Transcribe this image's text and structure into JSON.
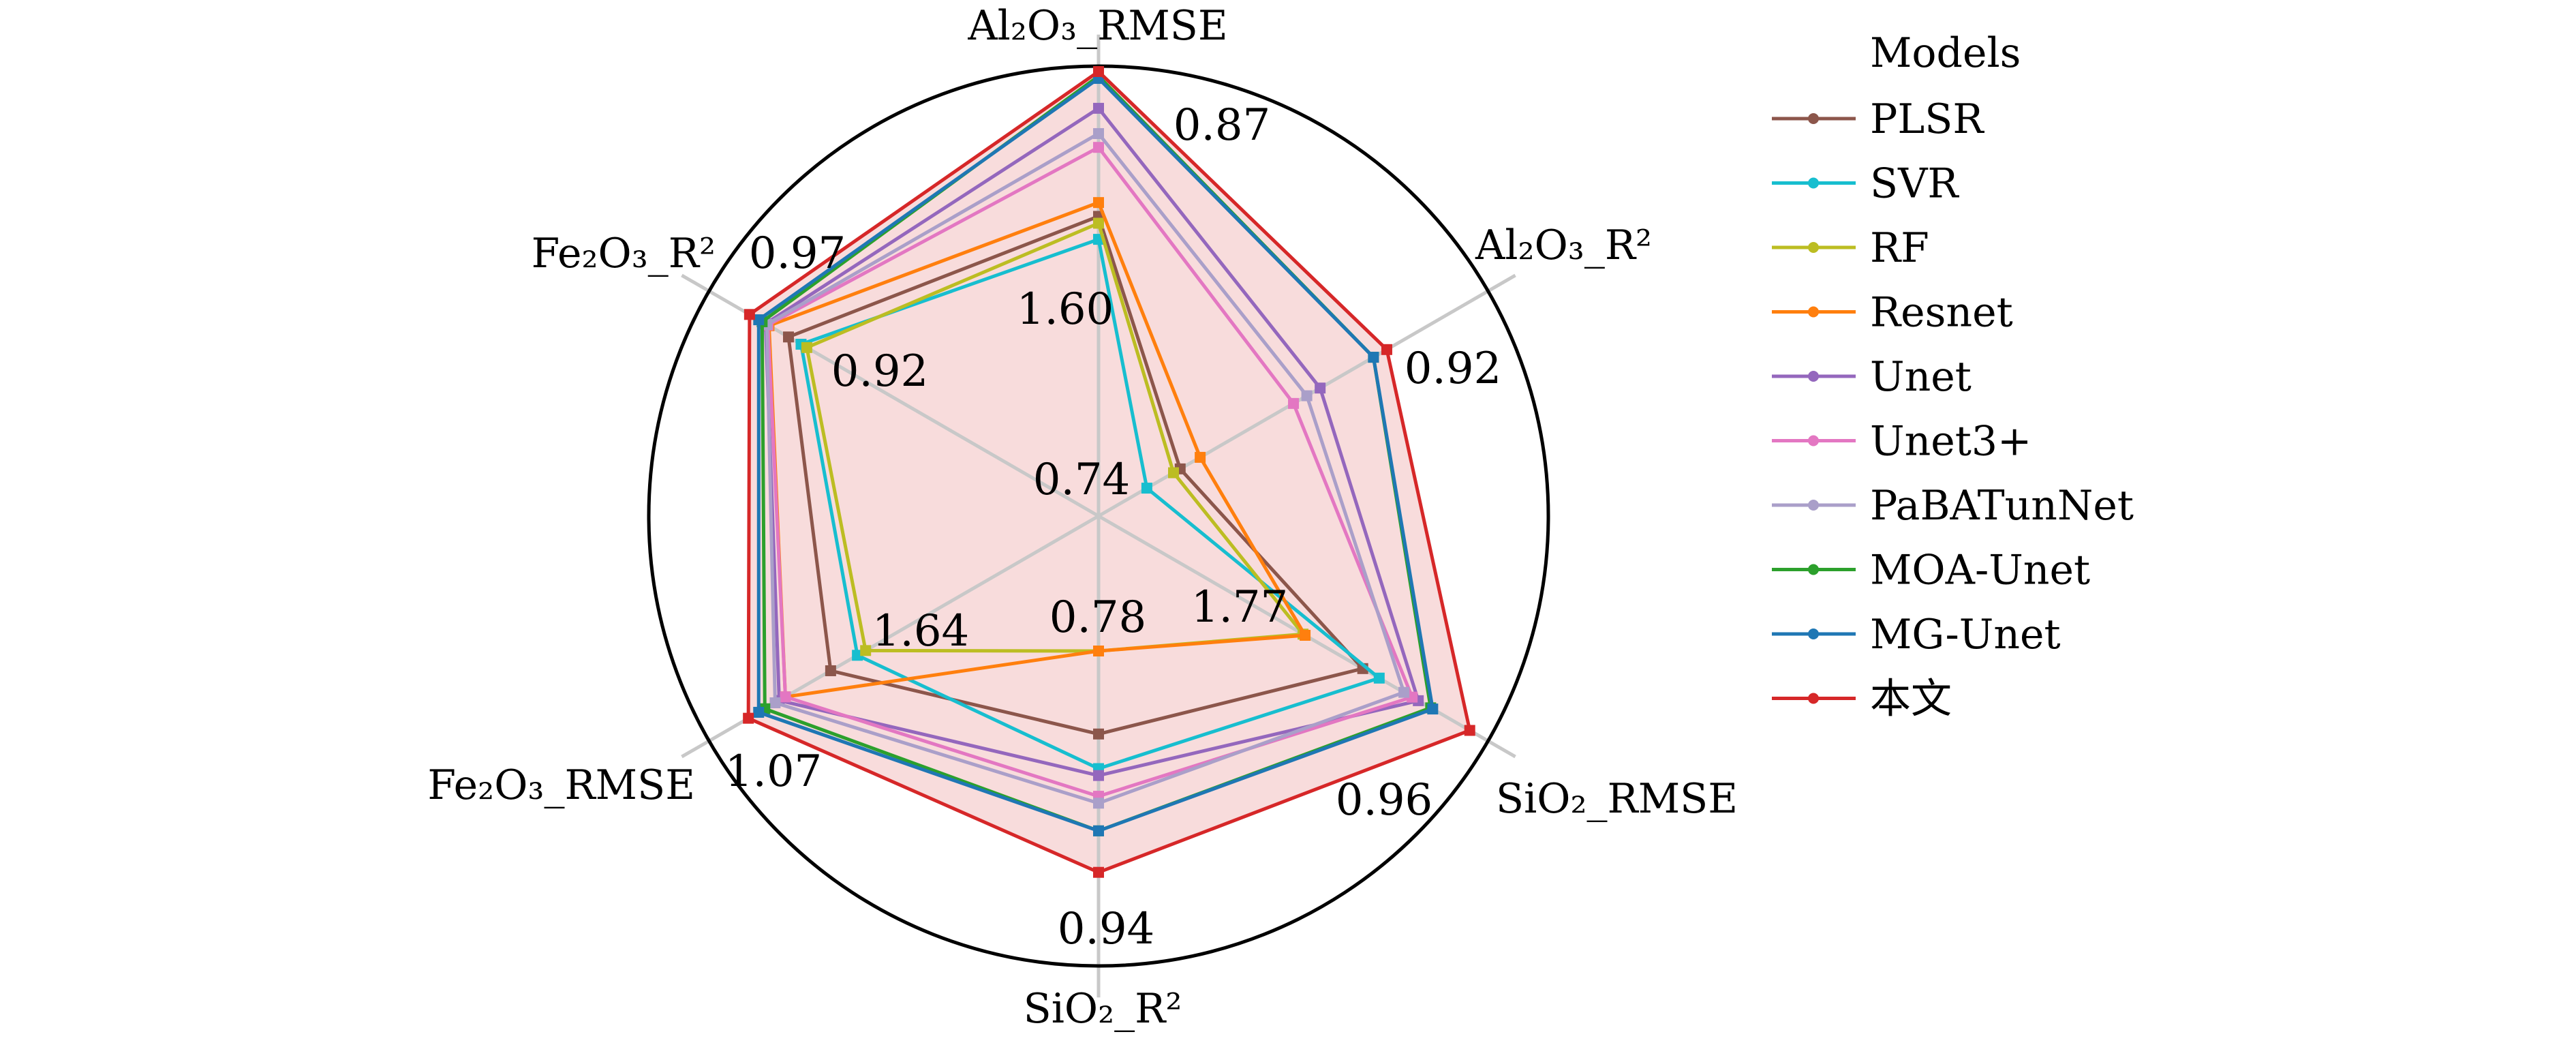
{
  "chart_data": {
    "type": "radar",
    "grid": true,
    "legend": {
      "title": "Models",
      "placement": "right"
    },
    "axes": [
      {
        "label": "Al₂O₃_RMSE",
        "best": 0.87,
        "worst": 1.6,
        "best_label": "0.87",
        "worst_label": "1.60"
      },
      {
        "label": "Al₂O₃_R²",
        "best": 0.92,
        "worst": 0.74,
        "best_label": "0.92",
        "worst_label": "0.74"
      },
      {
        "label": "SiO₂_RMSE",
        "best": 0.96,
        "worst": 1.77,
        "best_label": "0.96",
        "worst_label": "1.77"
      },
      {
        "label": "SiO₂_R²",
        "best": 0.94,
        "worst": 0.78,
        "best_label": "0.94",
        "worst_label": "0.78"
      },
      {
        "label": "Fe₂O₃_RMSE",
        "best": 1.07,
        "worst": 1.64,
        "best_label": "1.07",
        "worst_label": "1.64"
      },
      {
        "label": "Fe₂O₃_R²",
        "best": 0.97,
        "worst": 0.92,
        "best_label": "0.97",
        "worst_label": "0.92"
      }
    ],
    "series": [
      {
        "name": "PLSR",
        "color": "#8c564b",
        "values": [
          1.5,
          0.765,
          1.48,
          0.84,
          1.47,
          0.936
        ]
      },
      {
        "name": "SVR",
        "color": "#17becf",
        "values": [
          1.6,
          0.74,
          1.4,
          0.865,
          1.6,
          0.925
        ]
      },
      {
        "name": "RF",
        "color": "#bcbd22",
        "values": [
          1.53,
          0.76,
          1.77,
          0.78,
          1.64,
          0.92
        ]
      },
      {
        "name": "Resnet",
        "color": "#ff7f0e",
        "values": [
          1.44,
          0.78,
          1.76,
          0.78,
          1.25,
          0.953
        ]
      },
      {
        "name": "Unet",
        "color": "#9467bd",
        "values": [
          1.03,
          0.87,
          1.21,
          0.87,
          1.22,
          0.956
        ]
      },
      {
        "name": "Unet3+",
        "color": "#e377c2",
        "values": [
          1.2,
          0.85,
          1.24,
          0.885,
          1.25,
          0.954
        ]
      },
      {
        "name": "PaBATunNet",
        "color": "#aa9fc9",
        "values": [
          1.14,
          0.86,
          1.28,
          0.89,
          1.2,
          0.955
        ]
      },
      {
        "name": "MOA-Unet",
        "color": "#2ca02c",
        "values": [
          0.89,
          0.91,
          1.15,
          0.91,
          1.15,
          0.959
        ]
      },
      {
        "name": "MG-Unet",
        "color": "#1f77b4",
        "values": [
          0.9,
          0.91,
          1.14,
          0.91,
          1.12,
          0.962
        ]
      },
      {
        "name": "本文",
        "color": "#d62728",
        "values": [
          0.87,
          0.92,
          0.96,
          0.94,
          1.07,
          0.97
        ],
        "filled": true
      }
    ]
  }
}
